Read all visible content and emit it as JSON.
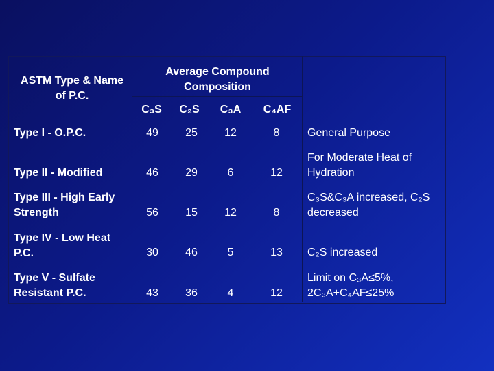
{
  "table": {
    "header": {
      "type_name": "ASTM Type & Name of P.C.",
      "composition": "Average Compound Composition",
      "compounds": [
        "C₃S",
        "C₂S",
        "C₃A",
        "C₄AF"
      ]
    },
    "rows": [
      {
        "type": "Type I - O.P.C.",
        "values": [
          "49",
          "25",
          "12",
          "8"
        ],
        "use": "General Purpose"
      },
      {
        "type": "Type II - Modified",
        "values": [
          "46",
          "29",
          "6",
          "12"
        ],
        "use": "For Moderate Heat of Hydration"
      },
      {
        "type": "Type III - High Early Strength",
        "values": [
          "56",
          "15",
          "12",
          "8"
        ],
        "use": "C₃S&C₃A increased, C₂S decreased"
      },
      {
        "type": "Type IV - Low Heat P.C.",
        "values": [
          "30",
          "46",
          "5",
          "13"
        ],
        "use": "C₂S increased"
      },
      {
        "type": "Type V - Sulfate Resistant P.C.",
        "values": [
          "43",
          "36",
          "4",
          "12"
        ],
        "use": "Limit on C₃A≤5%, 2C₃A+C₄AF≤25%"
      }
    ]
  },
  "colors": {
    "background_dark": "#0a1060",
    "background_light": "#1230c0",
    "text": "#ffffff"
  }
}
